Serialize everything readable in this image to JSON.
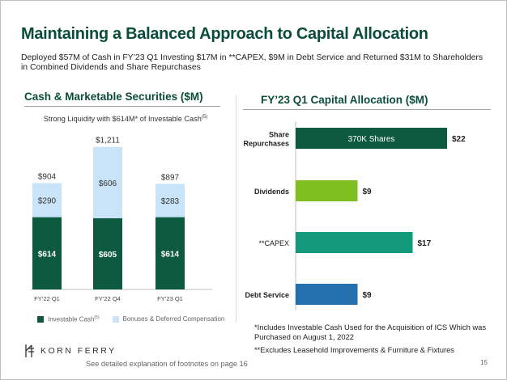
{
  "page": {
    "title": "Maintaining a Balanced Approach to Capital Allocation",
    "subtitle": "Deployed $57M of Cash in FY’23 Q1 Investing $17M in **CAPEX, $9M in Debt Service and Returned $31M to Shareholders in Combined Dividends and Share Repurchases",
    "page_number": "15",
    "footer_note": "See detailed explanation of footnotes on page 16",
    "logo_text": "KORN FERRY"
  },
  "left_panel": {
    "title": "Cash & Marketable Securities ($M)",
    "note_prefix": "Strong Liquidity with $614M* of Investable Cash",
    "note_sup": "(5)"
  },
  "right_panel": {
    "title": "FY’23 Q1 Capital Allocation ($M)",
    "footnote1": "*Includes Investable Cash Used for the Acquisition of ICS Which was Purchased on August 1, 2022",
    "footnote2": "**Excludes Leasehold Improvements & Furniture & Fixtures"
  },
  "chart_data": [
    {
      "type": "bar",
      "stacked": true,
      "categories": [
        "FY’22 Q1",
        "FY’22 Q4",
        "FY’23 Q1"
      ],
      "series": [
        {
          "name": "Investable Cash",
          "name_sup": "(5)",
          "color": "#0e5a40",
          "values": [
            614,
            605,
            614
          ],
          "labels": [
            "$614",
            "$605",
            "$614"
          ]
        },
        {
          "name": "Bonuses & Deferred Compensation",
          "color": "#c9e3f8",
          "values": [
            290,
            606,
            283
          ],
          "labels": [
            "$290",
            "$606",
            "$283"
          ]
        }
      ],
      "totals": [
        904,
        1211,
        897
      ],
      "total_labels": [
        "$904",
        "$1,211",
        "$897"
      ],
      "ylim": [
        0,
        1250
      ]
    },
    {
      "type": "bar",
      "orientation": "horizontal",
      "categories": [
        "Share Repurchases",
        "Dividends",
        "**CAPEX",
        "Debt Service"
      ],
      "values": [
        22,
        9,
        17,
        9
      ],
      "value_labels": [
        "$22",
        "$9",
        "$17",
        "$9"
      ],
      "inner_labels": [
        "370K Shares",
        "",
        "",
        ""
      ],
      "colors": [
        "#0e5a40",
        "#7fbf1f",
        "#139a7b",
        "#2270ad"
      ],
      "xlim": [
        0,
        22
      ]
    }
  ]
}
